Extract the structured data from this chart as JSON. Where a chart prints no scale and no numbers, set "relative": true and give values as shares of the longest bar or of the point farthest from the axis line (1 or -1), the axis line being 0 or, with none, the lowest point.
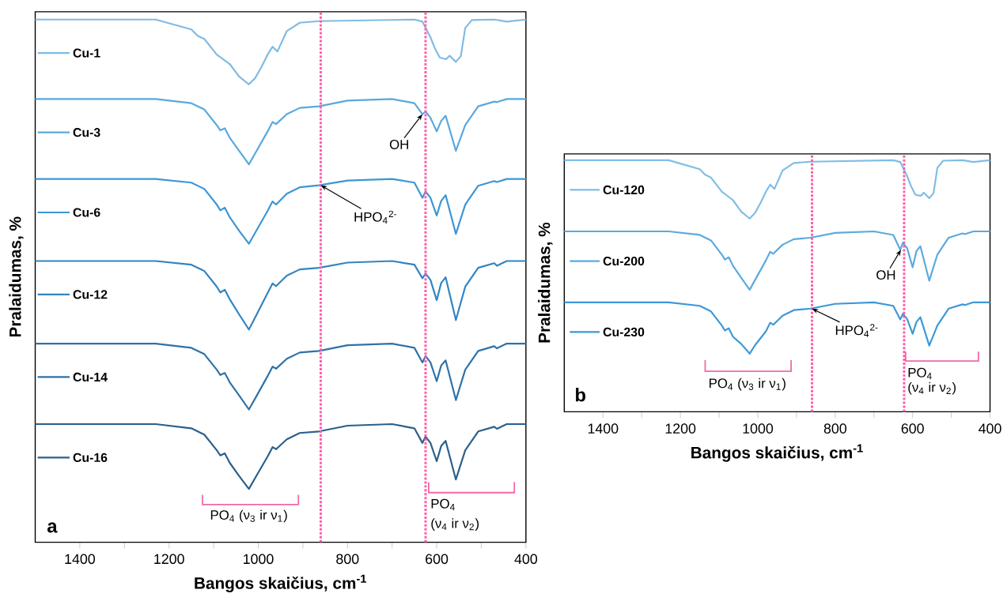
{
  "chart_data": [
    {
      "type": "line",
      "relative": true,
      "xlabel": "Bangos skaičius, cm$^{-1}$",
      "ylabel": "Pralaidumas, %",
      "x": [
        1500,
        1230,
        1150,
        1121,
        1093,
        1085,
        1075,
        1064,
        1043,
        1021,
        1007,
        979,
        968,
        960,
        936,
        907,
        864,
        800,
        700,
        650,
        632,
        625,
        614,
        600,
        590,
        580,
        557,
        536,
        507,
        471,
        465,
        443,
        400
      ],
      "xlim": [
        1500,
        400
      ],
      "xticks": [
        1400,
        {
          "value": 1300,
          "label": null
        },
        1200,
        {
          "value": 1100,
          "label": null
        },
        1000,
        {
          "value": 900,
          "label": null
        },
        800,
        {
          "value": 700,
          "label": null
        },
        600,
        {
          "value": 500,
          "label": null
        },
        400
      ],
      "series": [
        {
          "name": "Cu-1",
          "color": "#80bbe3",
          "x": [
            1500,
            1230,
            1150,
            1136,
            1121,
            1093,
            1064,
            1043,
            1021,
            1007,
            993,
            979,
            968,
            957,
            936,
            907,
            864,
            650,
            632,
            614,
            604,
            593,
            579,
            571,
            557,
            546,
            536,
            521,
            471,
            443,
            400
          ],
          "values": [
            1.0,
            1.0,
            0.981,
            0.969,
            0.963,
            0.933,
            0.915,
            0.891,
            0.876,
            0.888,
            0.909,
            0.933,
            0.948,
            0.939,
            0.978,
            0.994,
            0.997,
            1.0,
            0.996,
            0.966,
            0.945,
            0.927,
            0.924,
            0.931,
            0.919,
            0.93,
            0.984,
            0.999,
            1.0,
            0.996,
            1.0
          ]
        },
        {
          "name": "Cu-3",
          "color": "#5aa8dd",
          "values": [
            0.848,
            0.848,
            0.84,
            0.828,
            0.798,
            0.788,
            0.792,
            0.774,
            0.749,
            0.723,
            0.744,
            0.786,
            0.804,
            0.8,
            0.819,
            0.831,
            0.834,
            0.845,
            0.848,
            0.84,
            0.819,
            0.824,
            0.812,
            0.786,
            0.806,
            0.816,
            0.749,
            0.798,
            0.834,
            0.843,
            0.842,
            0.848,
            0.848
          ]
        },
        {
          "name": "Cu-6",
          "color": "#3d96d4",
          "values": [
            0.695,
            0.695,
            0.688,
            0.676,
            0.646,
            0.635,
            0.64,
            0.622,
            0.596,
            0.571,
            0.592,
            0.634,
            0.652,
            0.646,
            0.667,
            0.679,
            0.683,
            0.692,
            0.695,
            0.688,
            0.659,
            0.671,
            0.659,
            0.625,
            0.653,
            0.664,
            0.59,
            0.646,
            0.682,
            0.691,
            0.689,
            0.695,
            0.695
          ]
        },
        {
          "name": "Cu-12",
          "color": "#3284c0",
          "values": [
            0.538,
            0.538,
            0.531,
            0.519,
            0.489,
            0.478,
            0.483,
            0.465,
            0.436,
            0.407,
            0.43,
            0.477,
            0.495,
            0.49,
            0.51,
            0.522,
            0.525,
            0.535,
            0.538,
            0.531,
            0.505,
            0.514,
            0.502,
            0.463,
            0.496,
            0.507,
            0.425,
            0.489,
            0.525,
            0.534,
            0.529,
            0.538,
            0.538
          ]
        },
        {
          "name": "Cu-14",
          "color": "#2e72a8",
          "values": [
            0.38,
            0.38,
            0.372,
            0.36,
            0.33,
            0.32,
            0.324,
            0.306,
            0.281,
            0.254,
            0.275,
            0.318,
            0.336,
            0.332,
            0.351,
            0.363,
            0.366,
            0.377,
            0.38,
            0.372,
            0.344,
            0.356,
            0.344,
            0.308,
            0.338,
            0.348,
            0.272,
            0.33,
            0.366,
            0.375,
            0.371,
            0.38,
            0.38
          ]
        },
        {
          "name": "Cu-16",
          "color": "#2a5f8c",
          "values": [
            0.226,
            0.226,
            0.218,
            0.206,
            0.176,
            0.166,
            0.17,
            0.152,
            0.127,
            0.102,
            0.123,
            0.164,
            0.182,
            0.178,
            0.197,
            0.209,
            0.212,
            0.223,
            0.226,
            0.218,
            0.19,
            0.202,
            0.19,
            0.155,
            0.184,
            0.194,
            0.12,
            0.176,
            0.212,
            0.221,
            0.217,
            0.226,
            0.226
          ]
        }
      ],
      "ref_lines": [
        {
          "axis": "x",
          "value": 860,
          "color": "#ff5fa8",
          "line_style": "dotted"
        },
        {
          "axis": "x",
          "value": 625,
          "color": "#ff5fa8",
          "line_style": "dotted"
        }
      ],
      "legend": "left",
      "annotations": [
        {
          "text": "OH",
          "x": 632,
          "y": 0.819
        },
        {
          "text": "HPO$_{4}$$^{2-}$",
          "x": 860,
          "y": 0.683
        },
        "PO$_{4}$ (ν$_{3}$ ir ν$_{1}$)",
        "PO$_{4}$",
        "(ν$_{4}$ ir ν$_{2}$)",
        "a"
      ]
    },
    {
      "type": "line",
      "relative": true,
      "xlabel": "Bangos skaičius, cm$^{-1}$",
      "ylabel": "Pralaidumas, %",
      "x": [
        1500,
        1230,
        1150,
        1121,
        1093,
        1085,
        1075,
        1064,
        1043,
        1021,
        1007,
        979,
        968,
        960,
        936,
        907,
        864,
        800,
        700,
        650,
        632,
        625,
        614,
        600,
        590,
        580,
        557,
        536,
        507,
        471,
        465,
        443,
        400
      ],
      "xlim": [
        1500,
        400
      ],
      "xticks": [
        1400,
        {
          "value": 1300,
          "label": null
        },
        1200,
        {
          "value": 1100,
          "label": null
        },
        1000,
        {
          "value": 900,
          "label": null
        },
        800,
        {
          "value": 700,
          "label": null
        },
        600,
        {
          "value": 500,
          "label": null
        },
        400
      ],
      "series": [
        {
          "name": "Cu-120",
          "color": "#80bde6",
          "x": [
            1500,
            1230,
            1150,
            1136,
            1121,
            1093,
            1064,
            1043,
            1021,
            1007,
            993,
            979,
            968,
            957,
            936,
            907,
            864,
            650,
            632,
            614,
            604,
            593,
            579,
            571,
            557,
            546,
            536,
            521,
            471,
            443,
            400
          ],
          "values": [
            1.0,
            1.0,
            0.964,
            0.942,
            0.931,
            0.875,
            0.841,
            0.796,
            0.768,
            0.791,
            0.83,
            0.875,
            0.903,
            0.886,
            0.959,
            0.989,
            0.994,
            1.0,
            0.993,
            0.936,
            0.897,
            0.863,
            0.858,
            0.871,
            0.849,
            0.869,
            0.97,
            0.998,
            1.0,
            0.993,
            1.0
          ]
        },
        {
          "name": "Cu-200",
          "color": "#5aaade",
          "values": [
            0.717,
            0.717,
            0.703,
            0.681,
            0.625,
            0.605,
            0.614,
            0.58,
            0.533,
            0.485,
            0.524,
            0.602,
            0.636,
            0.628,
            0.664,
            0.686,
            0.692,
            0.711,
            0.717,
            0.703,
            0.644,
            0.672,
            0.65,
            0.574,
            0.639,
            0.658,
            0.521,
            0.625,
            0.692,
            0.709,
            0.706,
            0.717,
            0.717
          ]
        },
        {
          "name": "Cu-230",
          "color": "#3d98d6",
          "values": [
            0.435,
            0.435,
            0.421,
            0.399,
            0.343,
            0.323,
            0.332,
            0.298,
            0.27,
            0.231,
            0.265,
            0.32,
            0.354,
            0.346,
            0.382,
            0.404,
            0.41,
            0.429,
            0.435,
            0.421,
            0.367,
            0.39,
            0.368,
            0.31,
            0.357,
            0.376,
            0.263,
            0.343,
            0.41,
            0.427,
            0.424,
            0.435,
            0.435
          ]
        }
      ],
      "ref_lines": [
        {
          "axis": "x",
          "value": 860,
          "color": "#ff5fa8",
          "line_style": "dotted"
        },
        {
          "axis": "x",
          "value": 622,
          "color": "#ff5fa8",
          "line_style": "dotted"
        }
      ],
      "legend": "left",
      "annotations": [
        {
          "text": "OH",
          "x": 630,
          "y": 0.644
        },
        {
          "text": "HPO$_{4}$$^{2-}$",
          "x": 860,
          "y": 0.41
        },
        "PO$_{4}$ (ν$_{3}$ ir ν$_{1}$)",
        "PO$_{4}$",
        "(ν$_{4}$ ir ν$_{2}$)",
        "b"
      ]
    }
  ]
}
